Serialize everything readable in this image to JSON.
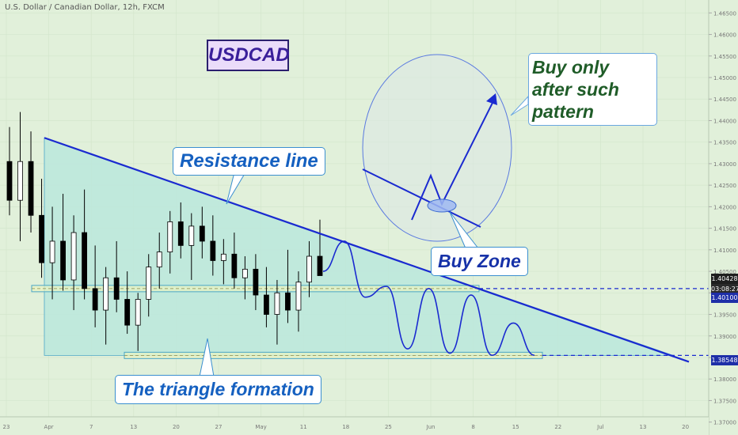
{
  "header": {
    "title": "U.S. Dollar / Canadian Dollar, 12h, FXCM"
  },
  "annotations": {
    "symbol": "USDCAD",
    "resistance": "Resistance line",
    "triangle": "The triangle formation",
    "buy_only": "Buy only after such pattern",
    "buy_zone": "Buy Zone"
  },
  "price_labels": {
    "current": "1.40428",
    "countdown": "03:08:27",
    "support_upper": "1.40100",
    "support_lower": "1.38548"
  },
  "colors": {
    "background": "#e1f0da",
    "bull": "#ffffff",
    "bear": "#000000",
    "trend": "#1a2ad0",
    "triangle_fill": "#bde8dc",
    "callout_border": "#3b8fd0"
  },
  "chart_data": {
    "type": "candlestick",
    "title": "U.S. Dollar / Canadian Dollar, 12h, FXCM",
    "x_ticks": [
      "23",
      "Apr",
      "7",
      "13",
      "20",
      "27",
      "May",
      "11",
      "18",
      "25",
      "Jun",
      "8",
      "15",
      "22",
      "Jul",
      "13",
      "20"
    ],
    "y_ticks": [
      "1.46500",
      "1.46000",
      "1.45500",
      "1.45000",
      "1.44500",
      "1.44000",
      "1.43500",
      "1.43000",
      "1.42500",
      "1.42000",
      "1.41500",
      "1.41000",
      "1.40500",
      "1.40000",
      "1.39500",
      "1.39000",
      "1.38500",
      "1.38000",
      "1.37500",
      "1.37000"
    ],
    "ylim": [
      1.367,
      1.468
    ],
    "candles": [
      [
        1.4305,
        1.4385,
        1.418,
        1.4215
      ],
      [
        1.4215,
        1.442,
        1.412,
        1.4305
      ],
      [
        1.4305,
        1.4375,
        1.414,
        1.418
      ],
      [
        1.418,
        1.4265,
        1.4035,
        1.407
      ],
      [
        1.407,
        1.42,
        1.3985,
        1.412
      ],
      [
        1.412,
        1.423,
        1.4005,
        1.403
      ],
      [
        1.403,
        1.418,
        1.396,
        1.414
      ],
      [
        1.414,
        1.424,
        1.3985,
        1.401
      ],
      [
        1.401,
        1.411,
        1.392,
        1.396
      ],
      [
        1.396,
        1.406,
        1.388,
        1.4035
      ],
      [
        1.4035,
        1.412,
        1.3955,
        1.3985
      ],
      [
        1.3985,
        1.405,
        1.3905,
        1.3925
      ],
      [
        1.3925,
        1.4,
        1.3865,
        1.3985
      ],
      [
        1.3985,
        1.409,
        1.3945,
        1.406
      ],
      [
        1.406,
        1.414,
        1.401,
        1.4095
      ],
      [
        1.4095,
        1.419,
        1.4045,
        1.4165
      ],
      [
        1.4165,
        1.421,
        1.408,
        1.411
      ],
      [
        1.411,
        1.4185,
        1.403,
        1.4155
      ],
      [
        1.4155,
        1.42,
        1.408,
        1.412
      ],
      [
        1.412,
        1.418,
        1.404,
        1.4075
      ],
      [
        1.4075,
        1.4125,
        1.402,
        1.409
      ],
      [
        1.409,
        1.414,
        1.401,
        1.4035
      ],
      [
        1.4035,
        1.4085,
        1.3985,
        1.4055
      ],
      [
        1.4055,
        1.409,
        1.396,
        1.3995
      ],
      [
        1.3995,
        1.406,
        1.392,
        1.395
      ],
      [
        1.395,
        1.403,
        1.388,
        1.4
      ],
      [
        1.4,
        1.41,
        1.393,
        1.396
      ],
      [
        1.396,
        1.405,
        1.391,
        1.4025
      ],
      [
        1.4025,
        1.412,
        1.399,
        1.4085
      ],
      [
        1.4085,
        1.417,
        1.4045,
        1.404
      ]
    ],
    "resistance_line": [
      1.436,
      1.384
    ],
    "support_lines": [
      1.401,
      1.38548
    ],
    "projection": [
      1.405,
      1.412,
      1.399,
      1.4015,
      1.387,
      1.401,
      1.386,
      1.3995,
      1.3855,
      1.393,
      1.3855
    ]
  }
}
